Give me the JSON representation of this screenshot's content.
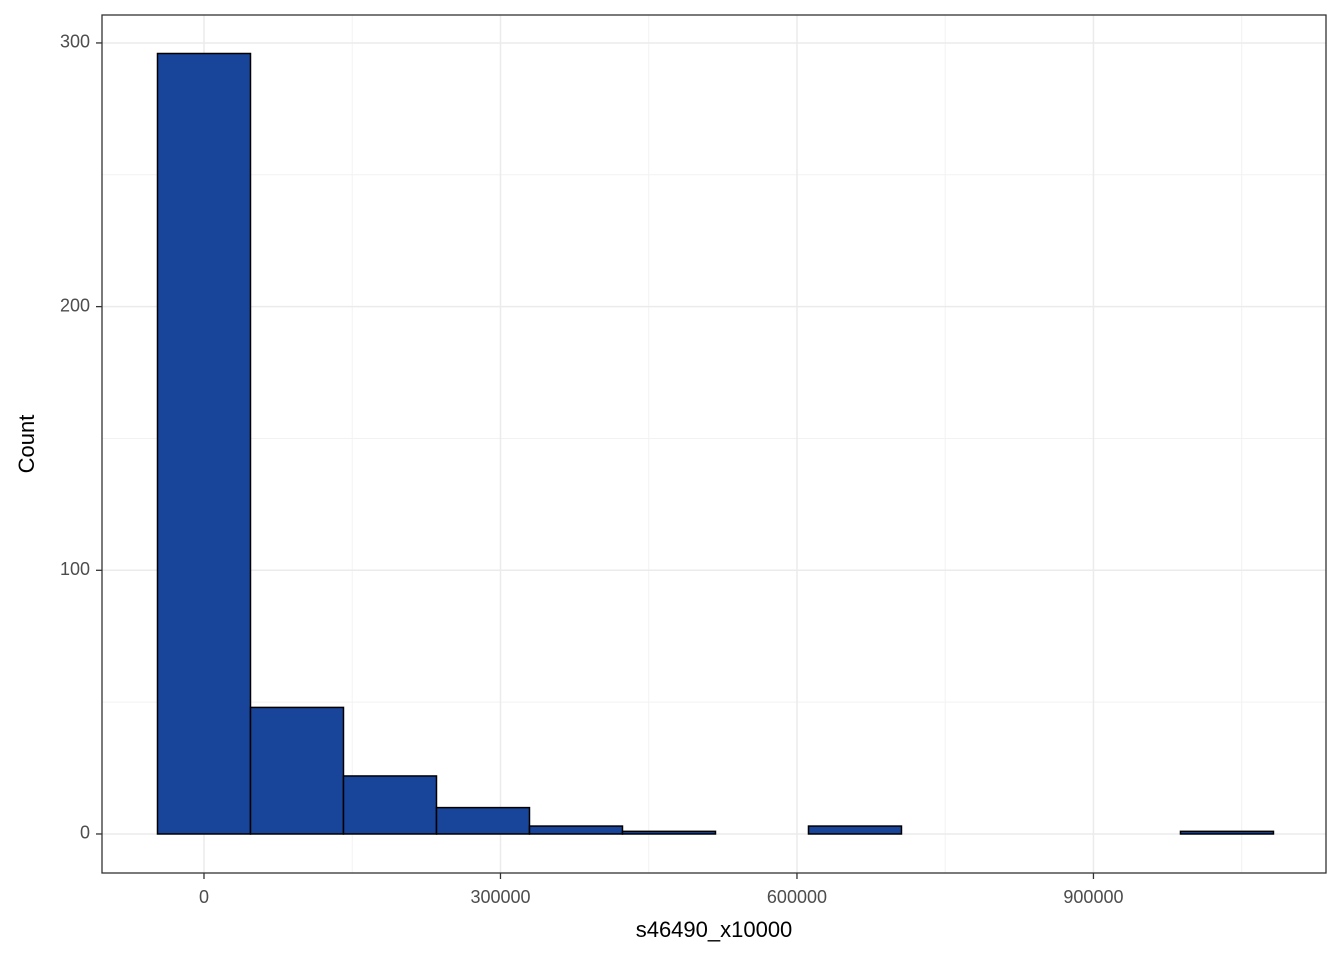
{
  "chart_data": {
    "type": "histogram",
    "x_label": "s46490_x10000",
    "y_label": "Count",
    "bins": [
      -47050,
      47050,
      141150,
      235250,
      329350,
      423450,
      517550,
      611650,
      705750,
      799850,
      893950,
      988050,
      1082150
    ],
    "values": [
      296,
      48,
      22,
      10,
      3,
      1,
      0,
      3,
      0,
      0,
      0,
      1
    ],
    "color": "#18449a",
    "edge_color": "#000000",
    "xlim": [
      -103200,
      1135300
    ],
    "ylim": [
      -14.8,
      310.6
    ],
    "xticks": [
      0,
      300000,
      600000,
      900000
    ],
    "yticks": [
      0,
      100,
      200,
      300
    ],
    "grid": true
  }
}
